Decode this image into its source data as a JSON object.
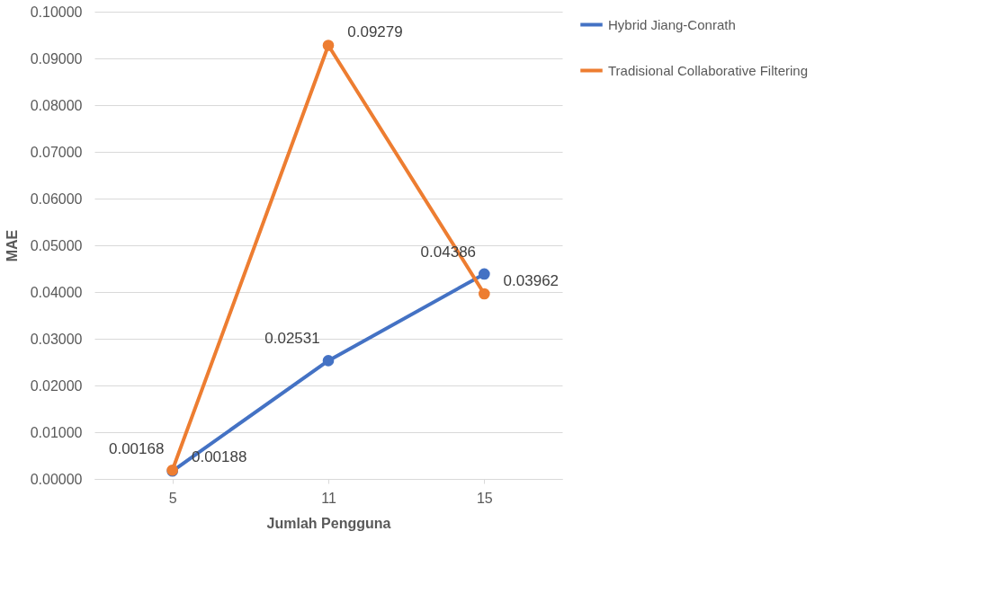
{
  "chart_data": {
    "type": "line",
    "xlabel": "Jumlah Pengguna",
    "ylabel": "MAE",
    "categories": [
      "5",
      "11",
      "15"
    ],
    "series": [
      {
        "name": "Hybrid Jiang-Conrath",
        "color": "#4472c4",
        "values": [
          0.00168,
          0.02531,
          0.04386
        ],
        "value_labels": [
          "0.00168",
          "0.02531",
          "0.04386"
        ]
      },
      {
        "name": "Tradisional Collaborative Filtering",
        "color": "#ed7d31",
        "values": [
          0.00188,
          0.09279,
          0.03962
        ],
        "value_labels": [
          "0.00188",
          "0.09279",
          "0.03962"
        ]
      }
    ],
    "ylim": [
      0,
      0.1
    ],
    "yticks": [
      {
        "value": 0,
        "label": "0.00000"
      },
      {
        "value": 0.01,
        "label": "0.01000"
      },
      {
        "value": 0.02,
        "label": "0.02000"
      },
      {
        "value": 0.03,
        "label": "0.03000"
      },
      {
        "value": 0.04,
        "label": "0.04000"
      },
      {
        "value": 0.05,
        "label": "0.05000"
      },
      {
        "value": 0.06,
        "label": "0.06000"
      },
      {
        "value": 0.07,
        "label": "0.07000"
      },
      {
        "value": 0.08,
        "label": "0.08000"
      },
      {
        "value": 0.09,
        "label": "0.09000"
      },
      {
        "value": 0.1,
        "label": "0.10000"
      }
    ],
    "grid": "y",
    "legend": "right",
    "marker": "circle",
    "line_style": "solid"
  }
}
